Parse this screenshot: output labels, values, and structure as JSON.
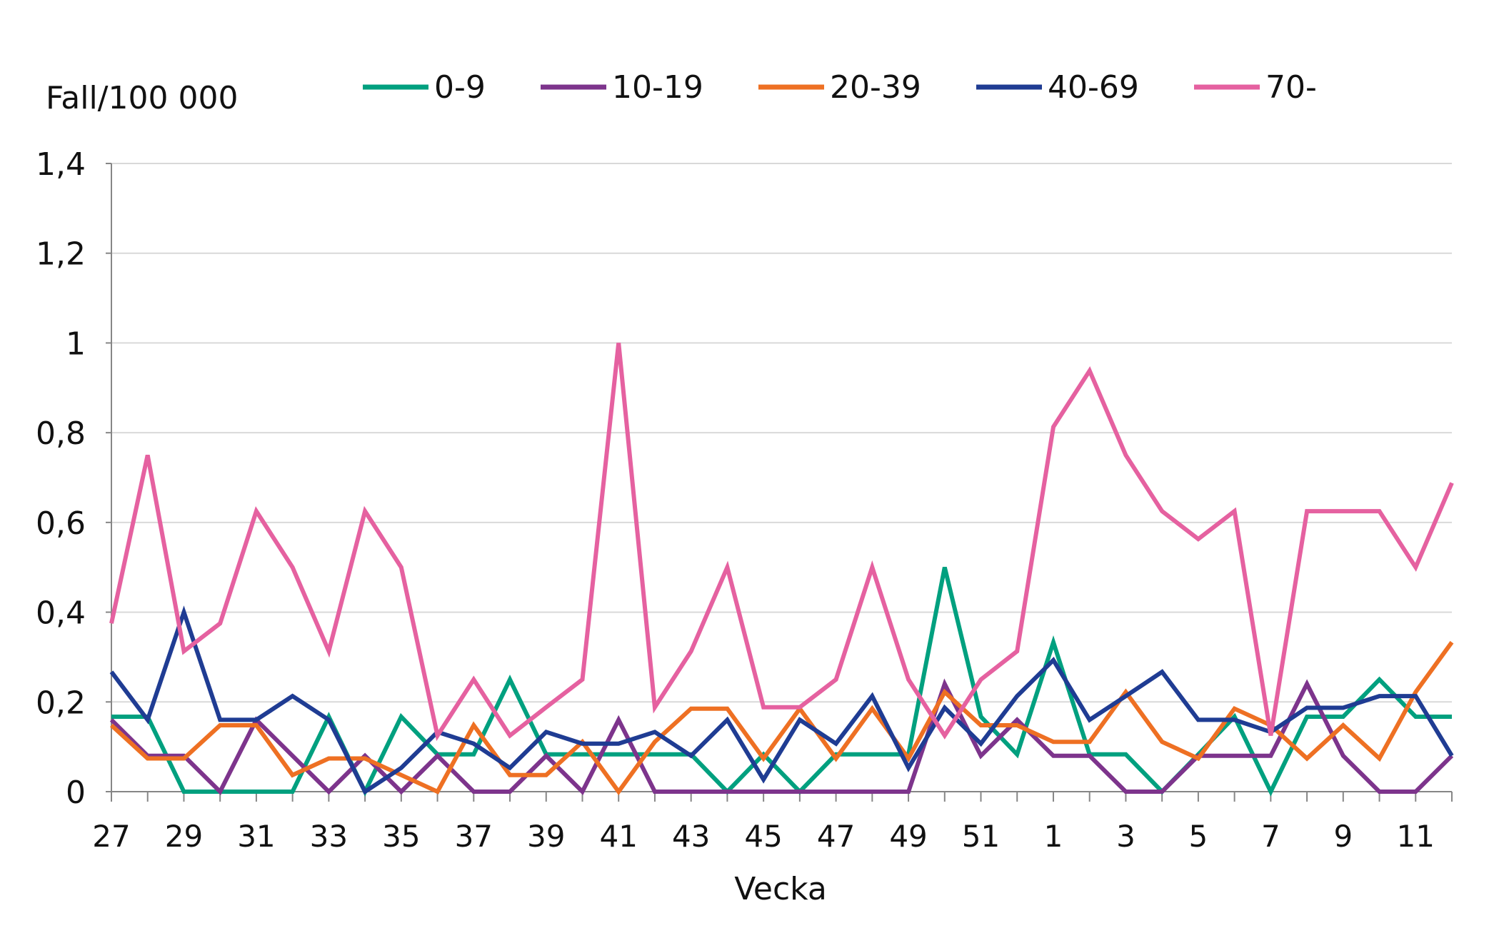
{
  "chart_data": {
    "type": "line",
    "title": "",
    "ylabel": "Fall/100 000",
    "xlabel": "Vecka",
    "ylim": [
      0,
      1.4
    ],
    "yticks": [
      "0",
      "0,2",
      "0,4",
      "0,6",
      "0,8",
      "1",
      "1,2",
      "1,4"
    ],
    "ytick_values": [
      0,
      0.2,
      0.4,
      0.6,
      0.8,
      1.0,
      1.2,
      1.4
    ],
    "grid": true,
    "legend_position": "top",
    "categories": [
      "27",
      "28",
      "29",
      "30",
      "31",
      "32",
      "33",
      "34",
      "35",
      "36",
      "37",
      "38",
      "39",
      "40",
      "41",
      "42",
      "43",
      "44",
      "45",
      "46",
      "47",
      "48",
      "49",
      "50",
      "51",
      "52",
      "1",
      "2",
      "3",
      "4",
      "5",
      "6",
      "7",
      "8",
      "9",
      "10",
      "11",
      "12"
    ],
    "xtick_labels_shown": "every other week",
    "series": [
      {
        "name": "0-9",
        "color": "#00A07F",
        "values": [
          0.167,
          0.167,
          0,
          0,
          0,
          0,
          0.167,
          0,
          0.167,
          0.083,
          0.083,
          0.25,
          0.083,
          0.083,
          0.083,
          0.083,
          0.083,
          0,
          0.083,
          0,
          0.083,
          0.083,
          0.083,
          0.5,
          0.167,
          0.083,
          0.333,
          0.083,
          0.083,
          0,
          0.083,
          0.167,
          0,
          0.167,
          0.167,
          0.25,
          0.167,
          0.167
        ]
      },
      {
        "name": "10-19",
        "color": "#7D348C",
        "values": [
          0.16,
          0.08,
          0.08,
          0,
          0.16,
          0.08,
          0,
          0.08,
          0,
          0.08,
          0,
          0,
          0.08,
          0,
          0.16,
          0,
          0,
          0,
          0,
          0,
          0,
          0,
          0,
          0.24,
          0.08,
          0.16,
          0.08,
          0.08,
          0,
          0,
          0.08,
          0.08,
          0.08,
          0.24,
          0.08,
          0,
          0,
          0.08
        ]
      },
      {
        "name": "20-39",
        "color": "#EE7023",
        "values": [
          0.148,
          0.074,
          0.074,
          0.148,
          0.148,
          0.037,
          0.074,
          0.074,
          0.037,
          0,
          0.148,
          0.037,
          0.037,
          0.111,
          0,
          0.111,
          0.185,
          0.185,
          0.074,
          0.185,
          0.074,
          0.185,
          0.074,
          0.222,
          0.148,
          0.148,
          0.111,
          0.111,
          0.222,
          0.111,
          0.074,
          0.185,
          0.148,
          0.074,
          0.148,
          0.074,
          0.222,
          0.333
        ]
      },
      {
        "name": "40-69",
        "color": "#1F3C93",
        "values": [
          0.267,
          0.16,
          0.4,
          0.16,
          0.16,
          0.213,
          0.16,
          0,
          0.053,
          0.133,
          0.107,
          0.053,
          0.133,
          0.107,
          0.107,
          0.133,
          0.08,
          0.16,
          0.027,
          0.16,
          0.107,
          0.213,
          0.053,
          0.187,
          0.107,
          0.213,
          0.293,
          0.16,
          0.213,
          0.267,
          0.16,
          0.16,
          0.133,
          0.187,
          0.187,
          0.213,
          0.213,
          0.08
        ]
      },
      {
        "name": "70-",
        "color": "#E561A0",
        "values": [
          0.375,
          0.75,
          0.313,
          0.375,
          0.625,
          0.5,
          0.313,
          0.625,
          0.5,
          0.125,
          0.25,
          0.125,
          0.188,
          0.25,
          1.0,
          0.188,
          0.313,
          0.5,
          0.188,
          0.188,
          0.25,
          0.5,
          0.25,
          0.125,
          0.25,
          0.313,
          0.813,
          0.938,
          0.75,
          0.625,
          0.563,
          0.625,
          0.125,
          0.625,
          0.625,
          0.625,
          0.5,
          0.688
        ]
      }
    ]
  }
}
